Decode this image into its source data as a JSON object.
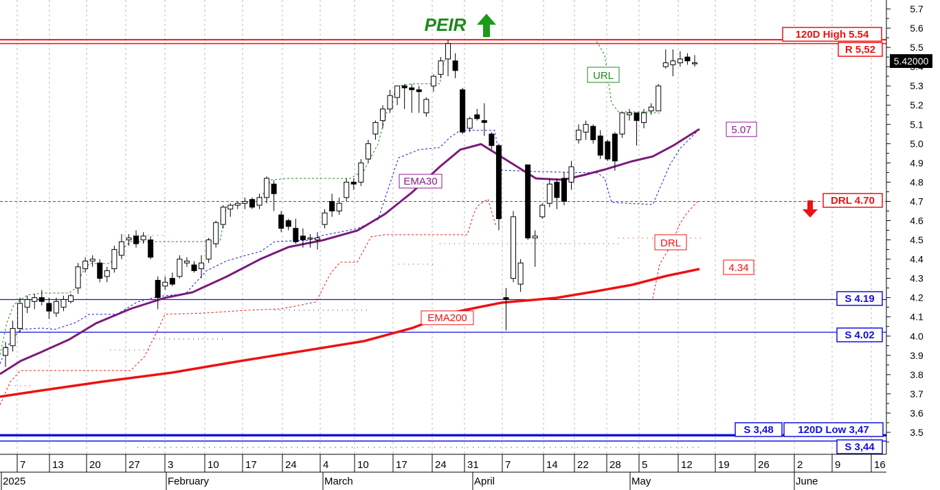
{
  "chart_data": {
    "type": "candlestick",
    "ticker": "PEIR",
    "signal": "up",
    "last_price_label": "5.42000",
    "y_axis": {
      "min": 3.4,
      "max": 5.75,
      "ticks": [
        "5.7",
        "5.6",
        "5.5",
        "5.4",
        "5.3",
        "5.2",
        "5.1",
        "5.0",
        "4.9",
        "4.8",
        "4.7",
        "4.6",
        "4.5",
        "4.4",
        "4.3",
        "4.2",
        "4.1",
        "4.0",
        "3.9",
        "3.8",
        "3.7",
        "3.6",
        "3.5"
      ]
    },
    "x_axis": {
      "day_ticks": [
        "7",
        "13",
        "20",
        "27",
        "3",
        "10",
        "17",
        "24",
        "4",
        "10",
        "17",
        "24",
        "31",
        "7",
        "14",
        "22",
        "28",
        "5",
        "12",
        "19",
        "26",
        "2",
        "9",
        "16"
      ],
      "month_labels": [
        "2025",
        "February",
        "March",
        "April",
        "May",
        "June"
      ]
    },
    "levels": [
      {
        "kind": "resistance",
        "label": "120D High 5.54",
        "value": 5.54,
        "color": "#ee1111"
      },
      {
        "kind": "resistance",
        "label": "R 5,52",
        "value": 5.52,
        "color": "#ee1111"
      },
      {
        "kind": "drl",
        "label": "DRL 4.70",
        "value": 4.7,
        "color": "#ee1111"
      },
      {
        "kind": "support",
        "label": "S 4.19",
        "value": 4.19,
        "color": "#1111dd"
      },
      {
        "kind": "support",
        "label": "S 4.02",
        "value": 4.02,
        "color": "#1111dd"
      },
      {
        "kind": "support",
        "label": "S 3,48",
        "value": 3.48,
        "color": "#1111dd"
      },
      {
        "kind": "support",
        "label": "120D Low 3,47",
        "value": 3.47,
        "color": "#1111dd"
      },
      {
        "kind": "support",
        "label": "S 3,44",
        "value": 3.44,
        "color": "#1111dd"
      }
    ],
    "indicator_labels": {
      "ema30": "EMA30",
      "ema30_value": "5.07",
      "ema200": "EMA200",
      "ema200_value": "4.34",
      "url": "URL",
      "drl": "DRL"
    },
    "candles": [
      {
        "o": 3.9,
        "h": 3.97,
        "l": 3.84,
        "c": 3.94
      },
      {
        "o": 3.95,
        "h": 4.08,
        "l": 3.92,
        "c": 4.04
      },
      {
        "o": 4.04,
        "h": 4.2,
        "l": 4.02,
        "c": 4.17
      },
      {
        "o": 4.15,
        "h": 4.21,
        "l": 4.12,
        "c": 4.19
      },
      {
        "o": 4.18,
        "h": 4.22,
        "l": 4.14,
        "c": 4.2
      },
      {
        "o": 4.2,
        "h": 4.24,
        "l": 4.16,
        "c": 4.18
      },
      {
        "o": 4.17,
        "h": 4.2,
        "l": 4.09,
        "c": 4.13
      },
      {
        "o": 4.12,
        "h": 4.2,
        "l": 4.1,
        "c": 4.18
      },
      {
        "o": 4.15,
        "h": 4.21,
        "l": 4.13,
        "c": 4.19
      },
      {
        "o": 4.18,
        "h": 4.22,
        "l": 4.17,
        "c": 4.21
      },
      {
        "o": 4.25,
        "h": 4.38,
        "l": 4.22,
        "c": 4.36
      },
      {
        "o": 4.35,
        "h": 4.41,
        "l": 4.33,
        "c": 4.39
      },
      {
        "o": 4.39,
        "h": 4.42,
        "l": 4.36,
        "c": 4.4
      },
      {
        "o": 4.38,
        "h": 4.4,
        "l": 4.28,
        "c": 4.3
      },
      {
        "o": 4.31,
        "h": 4.36,
        "l": 4.28,
        "c": 4.34
      },
      {
        "o": 4.35,
        "h": 4.47,
        "l": 4.33,
        "c": 4.45
      },
      {
        "o": 4.42,
        "h": 4.53,
        "l": 4.4,
        "c": 4.49
      },
      {
        "o": 4.5,
        "h": 4.53,
        "l": 4.47,
        "c": 4.51
      },
      {
        "o": 4.52,
        "h": 4.55,
        "l": 4.46,
        "c": 4.48
      },
      {
        "o": 4.5,
        "h": 4.54,
        "l": 4.48,
        "c": 4.52
      },
      {
        "o": 4.5,
        "h": 4.52,
        "l": 4.4,
        "c": 4.41
      },
      {
        "o": 4.29,
        "h": 4.31,
        "l": 4.14,
        "c": 4.2
      },
      {
        "o": 4.26,
        "h": 4.31,
        "l": 4.24,
        "c": 4.28
      },
      {
        "o": 4.3,
        "h": 4.33,
        "l": 4.26,
        "c": 4.27
      },
      {
        "o": 4.31,
        "h": 4.42,
        "l": 4.3,
        "c": 4.4
      },
      {
        "o": 4.38,
        "h": 4.41,
        "l": 4.36,
        "c": 4.39
      },
      {
        "o": 4.37,
        "h": 4.39,
        "l": 4.33,
        "c": 4.34
      },
      {
        "o": 4.35,
        "h": 4.42,
        "l": 4.3,
        "c": 4.38
      },
      {
        "o": 4.4,
        "h": 4.51,
        "l": 4.38,
        "c": 4.5
      },
      {
        "o": 4.48,
        "h": 4.6,
        "l": 4.46,
        "c": 4.59
      },
      {
        "o": 4.58,
        "h": 4.68,
        "l": 4.56,
        "c": 4.67
      },
      {
        "o": 4.66,
        "h": 4.69,
        "l": 4.62,
        "c": 4.68
      },
      {
        "o": 4.68,
        "h": 4.7,
        "l": 4.66,
        "c": 4.69
      },
      {
        "o": 4.69,
        "h": 4.72,
        "l": 4.66,
        "c": 4.7
      },
      {
        "o": 4.71,
        "h": 4.72,
        "l": 4.66,
        "c": 4.67
      },
      {
        "o": 4.68,
        "h": 4.74,
        "l": 4.66,
        "c": 4.72
      },
      {
        "o": 4.72,
        "h": 4.83,
        "l": 4.69,
        "c": 4.82
      },
      {
        "o": 4.79,
        "h": 4.81,
        "l": 4.65,
        "c": 4.74
      },
      {
        "o": 4.63,
        "h": 4.65,
        "l": 4.54,
        "c": 4.56
      },
      {
        "o": 4.6,
        "h": 4.61,
        "l": 4.55,
        "c": 4.57
      },
      {
        "o": 4.56,
        "h": 4.61,
        "l": 4.48,
        "c": 4.49
      },
      {
        "o": 4.52,
        "h": 4.56,
        "l": 4.46,
        "c": 4.5
      },
      {
        "o": 4.51,
        "h": 4.53,
        "l": 4.46,
        "c": 4.51
      },
      {
        "o": 4.5,
        "h": 4.54,
        "l": 4.45,
        "c": 4.51
      },
      {
        "o": 4.58,
        "h": 4.66,
        "l": 4.56,
        "c": 4.64
      },
      {
        "o": 4.7,
        "h": 4.74,
        "l": 4.62,
        "c": 4.65
      },
      {
        "o": 4.65,
        "h": 4.72,
        "l": 4.63,
        "c": 4.69
      },
      {
        "o": 4.72,
        "h": 4.82,
        "l": 4.7,
        "c": 4.8
      },
      {
        "o": 4.8,
        "h": 4.82,
        "l": 4.76,
        "c": 4.79
      },
      {
        "o": 4.8,
        "h": 4.92,
        "l": 4.78,
        "c": 4.9
      },
      {
        "o": 4.92,
        "h": 5.02,
        "l": 4.9,
        "c": 5.0
      },
      {
        "o": 5.05,
        "h": 5.12,
        "l": 5.02,
        "c": 5.11
      },
      {
        "o": 5.12,
        "h": 5.2,
        "l": 5.08,
        "c": 5.18
      },
      {
        "o": 5.18,
        "h": 5.28,
        "l": 5.16,
        "c": 5.25
      },
      {
        "o": 5.24,
        "h": 5.3,
        "l": 5.2,
        "c": 5.3
      },
      {
        "o": 5.3,
        "h": 5.31,
        "l": 5.18,
        "c": 5.29
      },
      {
        "o": 5.29,
        "h": 5.31,
        "l": 5.16,
        "c": 5.28
      },
      {
        "o": 5.28,
        "h": 5.3,
        "l": 5.16,
        "c": 5.27
      },
      {
        "o": 5.16,
        "h": 5.24,
        "l": 5.14,
        "c": 5.23
      },
      {
        "o": 5.3,
        "h": 5.36,
        "l": 5.27,
        "c": 5.35
      },
      {
        "o": 5.36,
        "h": 5.45,
        "l": 5.34,
        "c": 5.43
      },
      {
        "o": 5.44,
        "h": 5.54,
        "l": 5.35,
        "c": 5.52
      },
      {
        "o": 5.43,
        "h": 5.47,
        "l": 5.34,
        "c": 5.38
      },
      {
        "o": 5.28,
        "h": 5.29,
        "l": 5.05,
        "c": 5.06
      },
      {
        "o": 5.08,
        "h": 5.14,
        "l": 5.06,
        "c": 5.13
      },
      {
        "o": 5.15,
        "h": 5.18,
        "l": 5.12,
        "c": 5.13
      },
      {
        "o": 5.12,
        "h": 5.21,
        "l": 5.04,
        "c": 5.11
      },
      {
        "o": 5.05,
        "h": 5.06,
        "l": 4.97,
        "c": 4.99
      },
      {
        "o": 4.99,
        "h": 5.0,
        "l": 4.55,
        "c": 4.61
      },
      {
        "o": 4.2,
        "h": 4.25,
        "l": 4.03,
        "c": 4.19
      },
      {
        "o": 4.3,
        "h": 4.65,
        "l": 4.28,
        "c": 4.62
      },
      {
        "o": 4.27,
        "h": 4.4,
        "l": 4.23,
        "c": 4.38
      },
      {
        "o": 4.89,
        "h": 4.89,
        "l": 4.5,
        "c": 4.51
      },
      {
        "o": 4.51,
        "h": 4.55,
        "l": 4.36,
        "c": 4.52
      },
      {
        "o": 4.62,
        "h": 4.69,
        "l": 4.61,
        "c": 4.68
      },
      {
        "o": 4.69,
        "h": 4.82,
        "l": 4.67,
        "c": 4.79
      },
      {
        "o": 4.8,
        "h": 4.82,
        "l": 4.66,
        "c": 4.72
      },
      {
        "o": 4.82,
        "h": 4.85,
        "l": 4.68,
        "c": 4.7
      },
      {
        "o": 4.8,
        "h": 4.91,
        "l": 4.76,
        "c": 4.88
      },
      {
        "o": 5.02,
        "h": 5.1,
        "l": 5.0,
        "c": 5.07
      },
      {
        "o": 5.06,
        "h": 5.12,
        "l": 5.02,
        "c": 5.1
      },
      {
        "o": 5.09,
        "h": 5.1,
        "l": 5.0,
        "c": 5.02
      },
      {
        "o": 5.04,
        "h": 5.07,
        "l": 4.92,
        "c": 4.94
      },
      {
        "o": 5.01,
        "h": 5.02,
        "l": 4.91,
        "c": 4.92
      },
      {
        "o": 5.05,
        "h": 5.06,
        "l": 4.86,
        "c": 4.91
      },
      {
        "o": 5.05,
        "h": 5.16,
        "l": 5.03,
        "c": 5.16
      },
      {
        "o": 5.15,
        "h": 5.18,
        "l": 5.12,
        "c": 5.16
      },
      {
        "o": 5.16,
        "h": 5.16,
        "l": 4.99,
        "c": 5.12
      },
      {
        "o": 5.11,
        "h": 5.18,
        "l": 5.08,
        "c": 5.16
      },
      {
        "o": 5.17,
        "h": 5.21,
        "l": 5.15,
        "c": 5.19
      },
      {
        "o": 5.17,
        "h": 5.31,
        "l": 5.17,
        "c": 5.3
      },
      {
        "o": 5.4,
        "h": 5.49,
        "l": 5.39,
        "c": 5.42
      },
      {
        "o": 5.41,
        "h": 5.49,
        "l": 5.35,
        "c": 5.43
      },
      {
        "o": 5.42,
        "h": 5.48,
        "l": 5.4,
        "c": 5.44
      },
      {
        "o": 5.45,
        "h": 5.47,
        "l": 5.41,
        "c": 5.43
      },
      {
        "o": 5.42,
        "h": 5.46,
        "l": 5.4,
        "c": 5.42
      }
    ],
    "ema200": [
      3.69,
      3.75,
      3.8,
      3.84,
      3.89,
      3.94,
      3.99,
      4.04,
      4.1,
      4.17,
      4.19,
      4.21,
      4.23,
      4.28,
      4.34
    ],
    "ema30": [
      3.8,
      3.91,
      4.02,
      4.13,
      4.19,
      4.2,
      4.25,
      4.35,
      4.48,
      4.51,
      4.54,
      4.62,
      4.78,
      4.96,
      4.99,
      4.9,
      4.81,
      4.8,
      4.86,
      4.89,
      4.94,
      4.98,
      5.07
    ]
  }
}
